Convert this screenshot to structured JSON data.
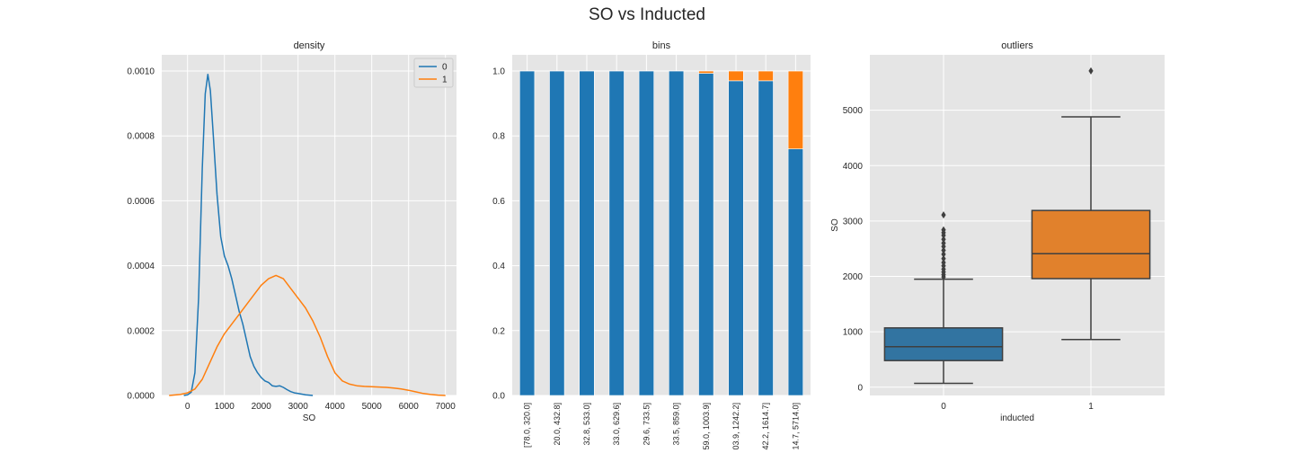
{
  "figure": {
    "suptitle": "SO vs Inducted"
  },
  "colors": {
    "series0": "#1f77b4",
    "series1": "#ff7f0e",
    "box0": "#3274a1",
    "box1": "#e1812c",
    "panel_bg": "#e5e5e5",
    "grid": "#ffffff"
  },
  "chart_data": [
    {
      "type": "line",
      "title": "density",
      "xlabel": "SO",
      "ylabel": "",
      "xlim": [
        -700,
        7300
      ],
      "ylim": [
        0,
        0.00105
      ],
      "xticks": [
        0,
        1000,
        2000,
        3000,
        4000,
        5000,
        6000,
        7000
      ],
      "xtick_labels": [
        "0",
        "1000",
        "2000",
        "3000",
        "4000",
        "5000",
        "6000",
        "7000"
      ],
      "yticks": [
        0,
        0.0002,
        0.0004,
        0.0006,
        0.0008,
        0.001
      ],
      "ytick_labels": [
        "0.0000",
        "0.0002",
        "0.0004",
        "0.0006",
        "0.0008",
        "0.0010"
      ],
      "grid": true,
      "legend": {
        "placement": "top-right",
        "entries": [
          "0",
          "1"
        ]
      },
      "series": [
        {
          "name": "0",
          "x": [
            -100,
            0,
            100,
            200,
            300,
            400,
            480,
            550,
            620,
            700,
            800,
            900,
            1000,
            1100,
            1200,
            1300,
            1400,
            1500,
            1600,
            1700,
            1800,
            1900,
            2000,
            2100,
            2200,
            2300,
            2400,
            2500,
            2600,
            2700,
            2800,
            2900,
            3000,
            3200,
            3400
          ],
          "y": [
            0,
            2e-06,
            1e-05,
            7e-05,
            0.0003,
            0.0007,
            0.00093,
            0.00099,
            0.00094,
            0.0008,
            0.00062,
            0.00049,
            0.00043,
            0.0004,
            0.00036,
            0.00031,
            0.00026,
            0.00022,
            0.00017,
            0.00012,
            9e-05,
            7e-05,
            5.5e-05,
            4.5e-05,
            4e-05,
            3e-05,
            2.8e-05,
            3e-05,
            2.5e-05,
            1.8e-05,
            1.2e-05,
            8e-06,
            6e-06,
            2e-06,
            0
          ]
        },
        {
          "name": "1",
          "x": [
            -500,
            -200,
            0,
            200,
            400,
            600,
            800,
            1000,
            1200,
            1400,
            1600,
            1800,
            2000,
            2200,
            2400,
            2600,
            2800,
            3000,
            3200,
            3400,
            3600,
            3800,
            4000,
            4200,
            4400,
            4600,
            4800,
            5000,
            5200,
            5400,
            5600,
            5800,
            6000,
            6200,
            6400,
            6600,
            6800,
            7000
          ],
          "y": [
            0,
            3e-06,
            8e-06,
            2e-05,
            5e-05,
            0.0001,
            0.00015,
            0.00019,
            0.00022,
            0.00025,
            0.00028,
            0.00031,
            0.00034,
            0.00036,
            0.00037,
            0.00036,
            0.00033,
            0.0003,
            0.00027,
            0.00023,
            0.00018,
            0.00012,
            7e-05,
            4.5e-05,
            3.5e-05,
            3e-05,
            2.8e-05,
            2.7e-05,
            2.6e-05,
            2.5e-05,
            2.3e-05,
            2e-05,
            1.6e-05,
            1.1e-05,
            6e-06,
            3e-06,
            1e-06,
            0
          ]
        }
      ]
    },
    {
      "type": "bar",
      "stacked": true,
      "title": "bins",
      "xlabel": "",
      "ylabel": "",
      "ylim": [
        0,
        1.05
      ],
      "yticks": [
        0,
        0.2,
        0.4,
        0.6,
        0.8,
        1.0
      ],
      "ytick_labels": [
        "0.0",
        "0.2",
        "0.4",
        "0.6",
        "0.8",
        "1.0"
      ],
      "grid": true,
      "categories": [
        "[78.0, 320.0]",
        "20.0, 432.8]",
        "32.8, 533.0]",
        "33.0, 629.6]",
        "29.6, 733.5]",
        "33.5, 859.0]",
        "59.0, 1003.9]",
        "03.9, 1242.2]",
        "42.2, 1614.7]",
        "14.7, 5714.0]"
      ],
      "series": [
        {
          "name": "0",
          "values": [
            1.0,
            1.0,
            1.0,
            1.0,
            1.0,
            1.0,
            0.993,
            0.97,
            0.97,
            0.76
          ]
        },
        {
          "name": "1",
          "values": [
            0.0,
            0.0,
            0.0,
            0.0,
            0.0,
            0.0,
            0.007,
            0.03,
            0.03,
            0.24
          ]
        }
      ]
    },
    {
      "type": "box",
      "title": "outliers",
      "xlabel": "inducted",
      "ylabel": "SO",
      "ylim": [
        -150,
        6000
      ],
      "yticks": [
        0,
        1000,
        2000,
        3000,
        4000,
        5000
      ],
      "ytick_labels": [
        "0",
        "1000",
        "2000",
        "3000",
        "4000",
        "5000"
      ],
      "grid": true,
      "categories": [
        "0",
        "1"
      ],
      "boxes": [
        {
          "category": "0",
          "whisker_low": 70,
          "q1": 480,
          "median": 730,
          "q3": 1070,
          "whisker_high": 1950,
          "outliers": [
            1990,
            2030,
            2080,
            2130,
            2190,
            2250,
            2320,
            2400,
            2470,
            2540,
            2600,
            2670,
            2740,
            2790,
            2840,
            3110
          ]
        },
        {
          "category": "1",
          "whisker_low": 860,
          "q1": 1960,
          "median": 2410,
          "q3": 3190,
          "whisker_high": 4880,
          "outliers": [
            5710
          ]
        }
      ]
    }
  ]
}
